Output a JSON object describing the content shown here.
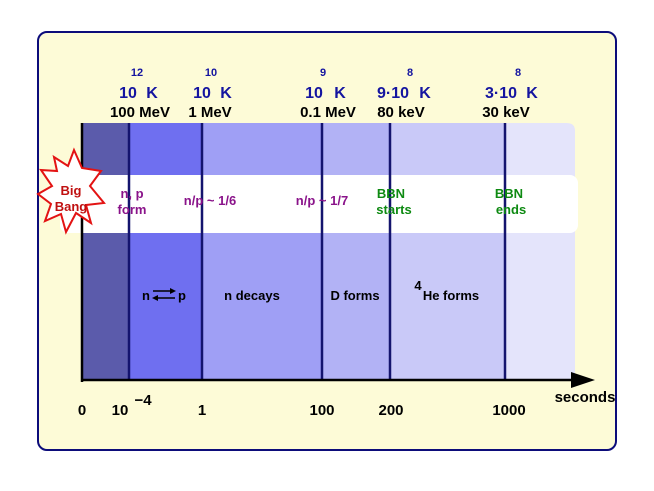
{
  "temperatures": [
    {
      "mantissa": "10",
      "exponent": "12",
      "unit": "K"
    },
    {
      "mantissa": "10",
      "exponent": "10",
      "unit": "K"
    },
    {
      "mantissa": "10",
      "exponent": "9",
      "unit": "K"
    },
    {
      "mantissa": "9·10",
      "exponent": "8",
      "unit": "K"
    },
    {
      "mantissa": "3·10",
      "exponent": "8",
      "unit": "K"
    }
  ],
  "energies": [
    "100 MeV",
    "1 MeV",
    "0.1 MeV",
    "80 keV",
    "30 keV"
  ],
  "big_bang": {
    "line1": "Big",
    "line2": "Bang"
  },
  "band_labels": {
    "np_form_1": "n, p",
    "np_form_2": "form",
    "ratio_1": "n/p ~ 1/6",
    "ratio_2": "n/p ~ 1/7",
    "bbn_start_1": "BBN",
    "bbn_start_2": "starts",
    "bbn_end_1": "BBN",
    "bbn_end_2": "ends"
  },
  "phases": {
    "np_left": "n",
    "np_right": "p",
    "n_decays": "n decays",
    "d_forms": "D forms",
    "he_sup": "4",
    "he_forms": "He forms"
  },
  "axis": {
    "ticks": [
      {
        "base": "0",
        "sup": ""
      },
      {
        "base": "10",
        "sup": "−4"
      },
      {
        "base": "1",
        "sup": ""
      },
      {
        "base": "100",
        "sup": ""
      },
      {
        "base": "200",
        "sup": ""
      },
      {
        "base": "1000",
        "sup": ""
      }
    ],
    "unit_label": "seconds"
  },
  "colors": {
    "frame_bg": "#fdfbd7",
    "frame_border": "#0c0c7a",
    "seg1": "#5b5bab",
    "seg2": "#6f6ff0",
    "seg3": "#9f9ff5",
    "seg4": "#b2b2f5",
    "seg5": "#c9c9f8",
    "seg6": "#e4e4fb",
    "divider": "#14146e",
    "star_fill": "#ffffff",
    "star_stroke": "#e31313"
  }
}
